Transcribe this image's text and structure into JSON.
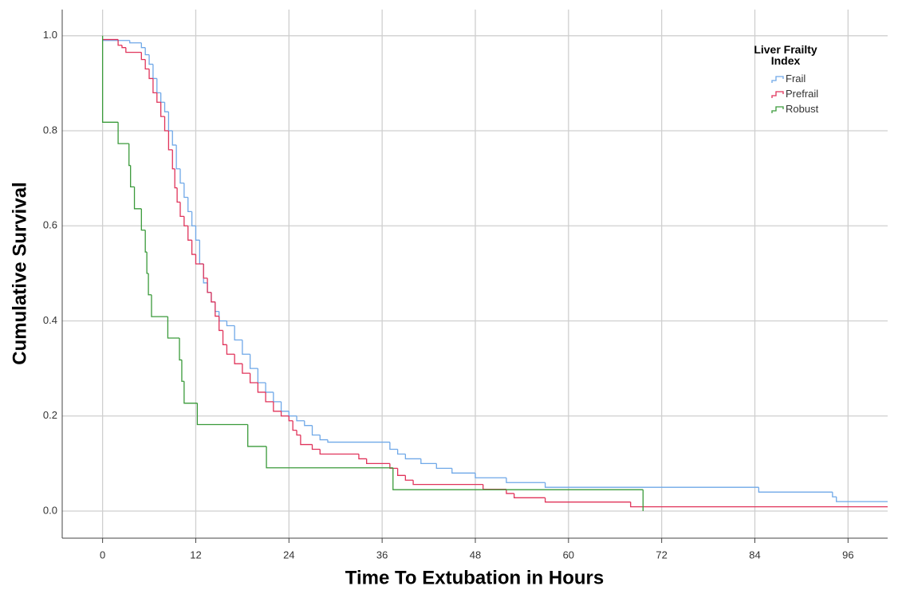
{
  "chart_data": {
    "type": "step",
    "x_label": "Time To Extubation in Hours",
    "y_label": "Cumulative Survival",
    "legend_title": "Liver Frailty Index",
    "legend_position": "top-right",
    "grid": true,
    "xlim": [
      -5.2,
      101.1
    ],
    "ylim": [
      -0.057,
      1.055
    ],
    "xticks": [
      0,
      12,
      24,
      36,
      48,
      60,
      72,
      84,
      96
    ],
    "yticks": [
      {
        "value": 0,
        "label": "0.0"
      },
      0.2,
      0.4,
      0.6,
      0.8,
      {
        "value": 1,
        "label": "1.0"
      }
    ],
    "series": [
      {
        "name": "Frail",
        "color": "#6fa8e8",
        "x": [
          0,
          3.5,
          5,
          5.5,
          6,
          6.5,
          7,
          7.5,
          8,
          8.5,
          9,
          9.5,
          10,
          10.5,
          11,
          11.5,
          12,
          12.5,
          13,
          13.5,
          14,
          14.5,
          15,
          16,
          17,
          18,
          19,
          20,
          21,
          22,
          23,
          24,
          25,
          26,
          27,
          28,
          29,
          37,
          38,
          39,
          41,
          43,
          45,
          48,
          52,
          57,
          84.5,
          94,
          94.5,
          101.1
        ],
        "values": [
          0.99,
          0.985,
          0.975,
          0.96,
          0.94,
          0.91,
          0.88,
          0.86,
          0.84,
          0.8,
          0.77,
          0.72,
          0.69,
          0.66,
          0.63,
          0.6,
          0.57,
          0.52,
          0.48,
          0.46,
          0.44,
          0.42,
          0.4,
          0.39,
          0.36,
          0.33,
          0.3,
          0.27,
          0.25,
          0.23,
          0.21,
          0.2,
          0.19,
          0.18,
          0.16,
          0.15,
          0.145,
          0.13,
          0.12,
          0.11,
          0.1,
          0.09,
          0.08,
          0.07,
          0.06,
          0.05,
          0.04,
          0.03,
          0.02,
          0.02
        ]
      },
      {
        "name": "Prefrail",
        "color": "#e0335a",
        "x": [
          0,
          2,
          2.5,
          3,
          5,
          5.5,
          6,
          6.5,
          7,
          7.5,
          8,
          8.5,
          9,
          9.3,
          9.6,
          10,
          10.5,
          11,
          11.5,
          12,
          13,
          13.5,
          14,
          14.5,
          15,
          15.5,
          16,
          17,
          18,
          19,
          20,
          21,
          22,
          23,
          24,
          24.5,
          25,
          25.5,
          27,
          28,
          33,
          34,
          37,
          38,
          39,
          40,
          49,
          52,
          53,
          57,
          68,
          101.1
        ],
        "values": [
          0.992,
          0.98,
          0.975,
          0.965,
          0.95,
          0.93,
          0.91,
          0.88,
          0.86,
          0.83,
          0.8,
          0.76,
          0.72,
          0.68,
          0.65,
          0.62,
          0.6,
          0.57,
          0.54,
          0.52,
          0.49,
          0.46,
          0.44,
          0.41,
          0.38,
          0.35,
          0.33,
          0.31,
          0.29,
          0.27,
          0.25,
          0.23,
          0.21,
          0.2,
          0.19,
          0.17,
          0.16,
          0.14,
          0.13,
          0.12,
          0.11,
          0.1,
          0.09,
          0.075,
          0.065,
          0.056,
          0.046,
          0.037,
          0.028,
          0.019,
          0.009,
          0.009
        ]
      },
      {
        "name": "Robust",
        "color": "#3a9a3a",
        "x": [
          0,
          0,
          2,
          3.4,
          3.6,
          4.1,
          5.0,
          5.5,
          5.7,
          5.9,
          6.3,
          8.4,
          9.9,
          10.2,
          10.5,
          12.2,
          18.7,
          21.1,
          37.4,
          69.6
        ],
        "values": [
          1,
          0.818,
          0.773,
          0.727,
          0.682,
          0.636,
          0.591,
          0.545,
          0.5,
          0.455,
          0.409,
          0.364,
          0.318,
          0.273,
          0.227,
          0.182,
          0.136,
          0.091,
          0.045,
          0
        ]
      }
    ]
  }
}
